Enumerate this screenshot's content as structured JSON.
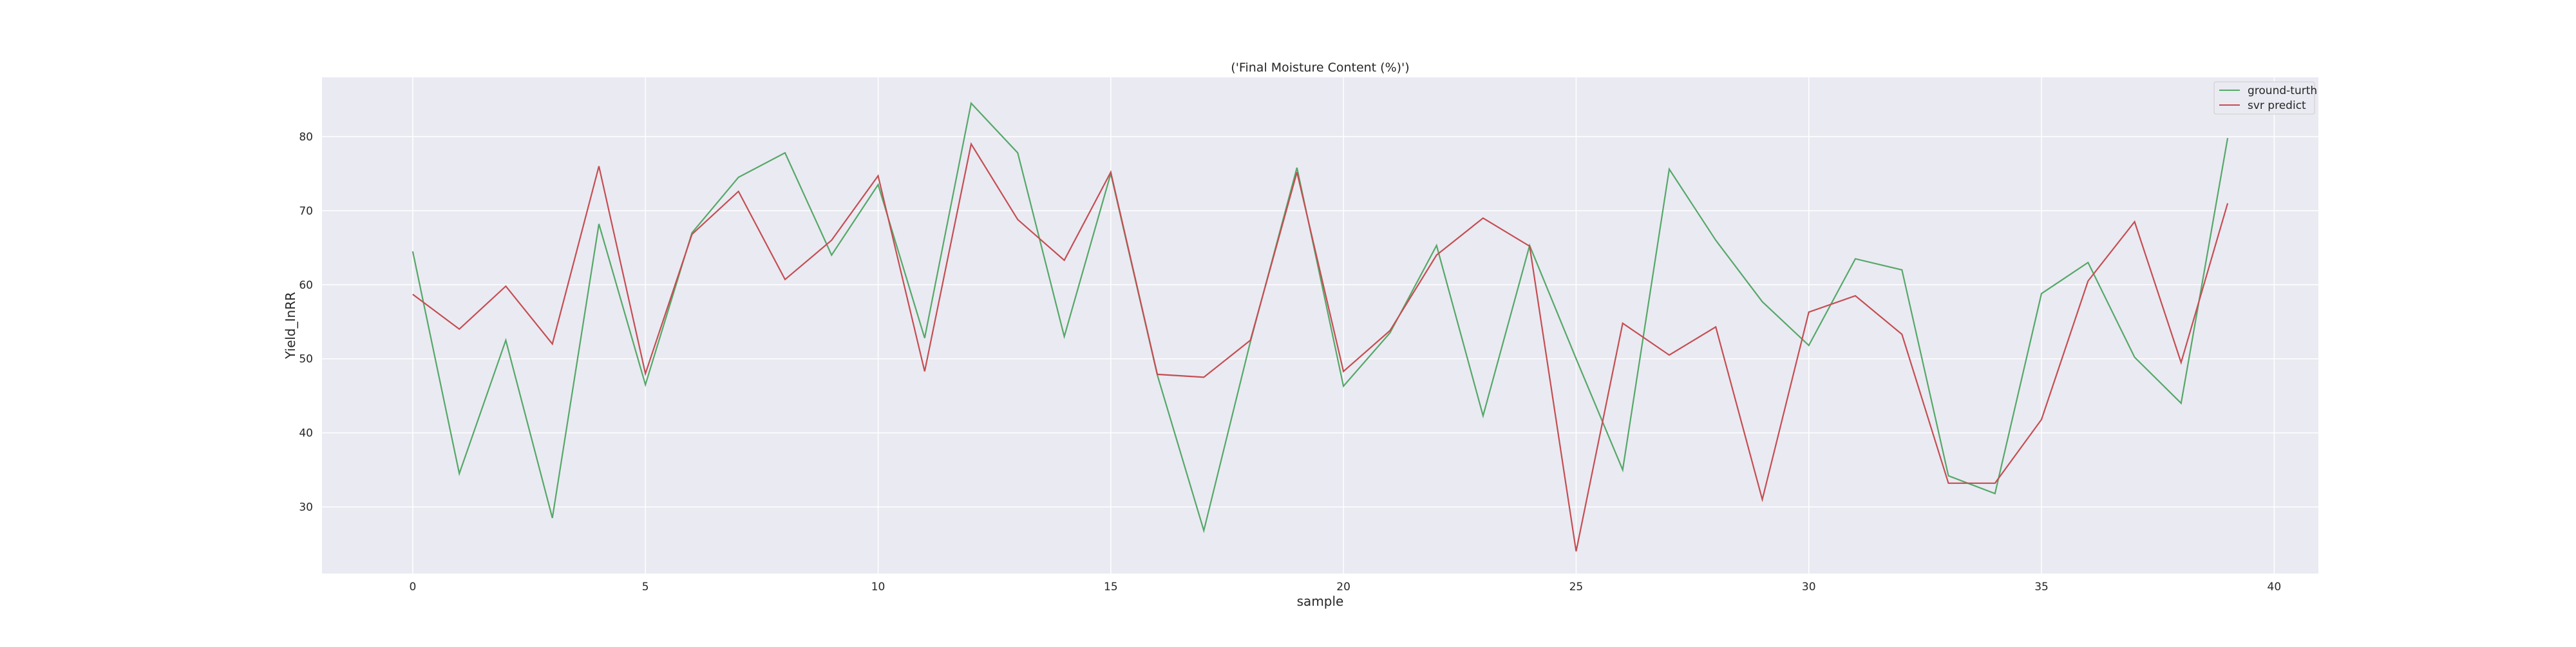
{
  "chart_data": {
    "type": "line",
    "title": "('Final Moisture Content (%)')",
    "xlabel": "sample",
    "ylabel": "Yield_InRR",
    "xlim": [
      -1.95,
      40.95
    ],
    "ylim": [
      21.0,
      88.0
    ],
    "x_ticks": [
      0,
      5,
      10,
      15,
      20,
      25,
      30,
      35,
      40
    ],
    "y_ticks": [
      30,
      40,
      50,
      60,
      70,
      80
    ],
    "grid": true,
    "legend_position": "top-right",
    "x": [
      0,
      1,
      2,
      3,
      4,
      5,
      6,
      7,
      8,
      9,
      10,
      11,
      12,
      13,
      14,
      15,
      16,
      17,
      18,
      19,
      20,
      21,
      22,
      23,
      24,
      25,
      26,
      27,
      28,
      29,
      30,
      31,
      32,
      33,
      34,
      35,
      36,
      37,
      38,
      39
    ],
    "series": [
      {
        "name": "ground-turth",
        "color": "#55a868",
        "values": [
          64.5,
          34.5,
          52.5,
          28.5,
          68.2,
          46.5,
          67.0,
          74.5,
          77.8,
          64.0,
          73.5,
          52.8,
          84.5,
          77.8,
          53.0,
          75.0,
          47.8,
          26.8,
          52.3,
          75.8,
          46.3,
          53.5,
          65.3,
          42.3,
          65.3,
          50.0,
          35.0,
          75.6,
          66.0,
          57.7,
          51.8,
          63.5,
          62.0,
          34.2,
          31.8,
          58.8,
          63.0,
          50.2,
          44.0,
          79.8
        ]
      },
      {
        "name": "svr predict",
        "color": "#c44e52",
        "values": [
          58.7,
          54.0,
          59.8,
          52.0,
          76.0,
          48.0,
          66.8,
          72.6,
          60.7,
          66.0,
          74.7,
          48.3,
          79.0,
          68.8,
          63.3,
          75.2,
          47.9,
          47.5,
          52.5,
          75.2,
          48.3,
          53.8,
          64.0,
          69.0,
          65.2,
          24.0,
          54.8,
          50.5,
          54.3,
          31.0,
          56.3,
          58.5,
          53.3,
          33.2,
          33.2,
          41.8,
          60.5,
          68.5,
          49.5,
          71.0
        ]
      }
    ]
  }
}
